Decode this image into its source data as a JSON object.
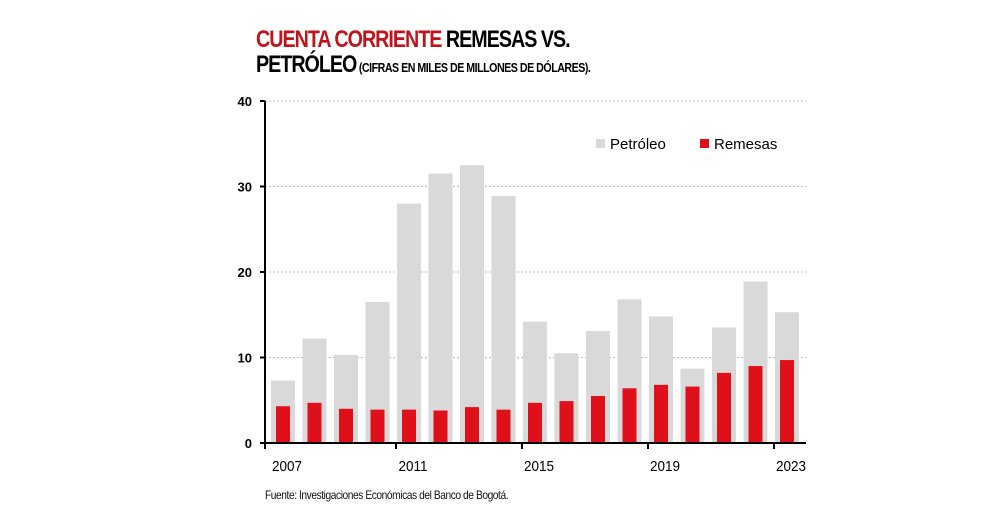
{
  "title": {
    "part1": "CUENTA CORRIENTE",
    "part2": " REMESAS VS.",
    "part3": "PETRÓLEO",
    "part4": " (CIFRAS EN MILES DE MILLONES DE DÓLARES)."
  },
  "source": "Fuente: Investigaciones Económicas del Banco de Bogotá.",
  "chart_data": {
    "type": "bar",
    "categories": [
      "2007",
      "2008",
      "2009",
      "2010",
      "2011",
      "2012",
      "2013",
      "2014",
      "2015",
      "2016",
      "2017",
      "2018",
      "2019",
      "2020",
      "2021",
      "2022",
      "2023"
    ],
    "x_tick_labels": [
      "2007",
      "2011",
      "2015",
      "2019",
      "2023"
    ],
    "y_ticks": [
      "0",
      "10",
      "20",
      "30",
      "40"
    ],
    "ylim": [
      0,
      40
    ],
    "grid": true,
    "legend": "top-right",
    "series": [
      {
        "name": "Petróleo",
        "color": "#d9d9d9",
        "values": [
          7.3,
          12.2,
          10.3,
          16.5,
          28.0,
          31.5,
          32.5,
          28.9,
          14.2,
          10.5,
          13.1,
          16.8,
          14.8,
          8.7,
          13.5,
          18.9,
          15.3
        ]
      },
      {
        "name": "Remesas",
        "color": "#e0101a",
        "values": [
          4.3,
          4.7,
          4.0,
          3.9,
          3.9,
          3.8,
          4.2,
          3.9,
          4.7,
          4.9,
          5.5,
          6.4,
          6.8,
          6.6,
          8.2,
          9.0,
          9.7
        ]
      }
    ]
  }
}
